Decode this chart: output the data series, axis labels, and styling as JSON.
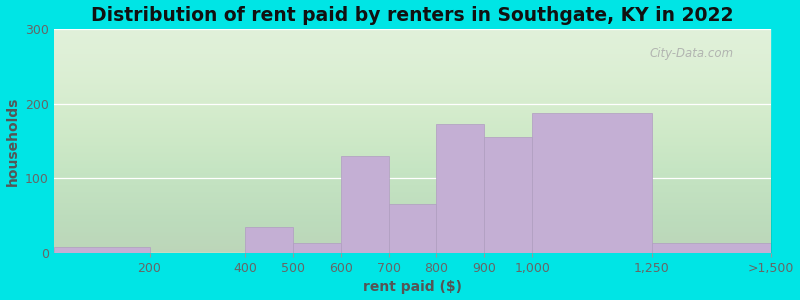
{
  "title": "Distribution of rent paid by renters in Southgate, KY in 2022",
  "xlabel": "rent paid ($)",
  "ylabel": "households",
  "bin_edges": [
    0,
    200,
    400,
    500,
    600,
    700,
    800,
    900,
    1000,
    1250,
    1500
  ],
  "tick_positions": [
    200,
    400,
    500,
    600,
    700,
    800,
    900,
    1000,
    1250,
    1500
  ],
  "tick_labels": [
    "200",
    "400",
    "500",
    "600",
    "700",
    "800",
    "900",
    "1,000",
    "1,250",
    ">1,500"
  ],
  "values": [
    8,
    0,
    35,
    13,
    130,
    65,
    172,
    155,
    188,
    13
  ],
  "bar_color": "#c4afd4",
  "bar_edge_color": "#b09dc0",
  "ylim": [
    0,
    300
  ],
  "yticks": [
    0,
    100,
    200,
    300
  ],
  "bg_color": "#ddefd5",
  "outer_bg": "#00e5e5",
  "title_fontsize": 13.5,
  "axis_label_fontsize": 10,
  "tick_fontsize": 9,
  "watermark_text": "City-Data.com",
  "watermark_symbol": "⌕"
}
